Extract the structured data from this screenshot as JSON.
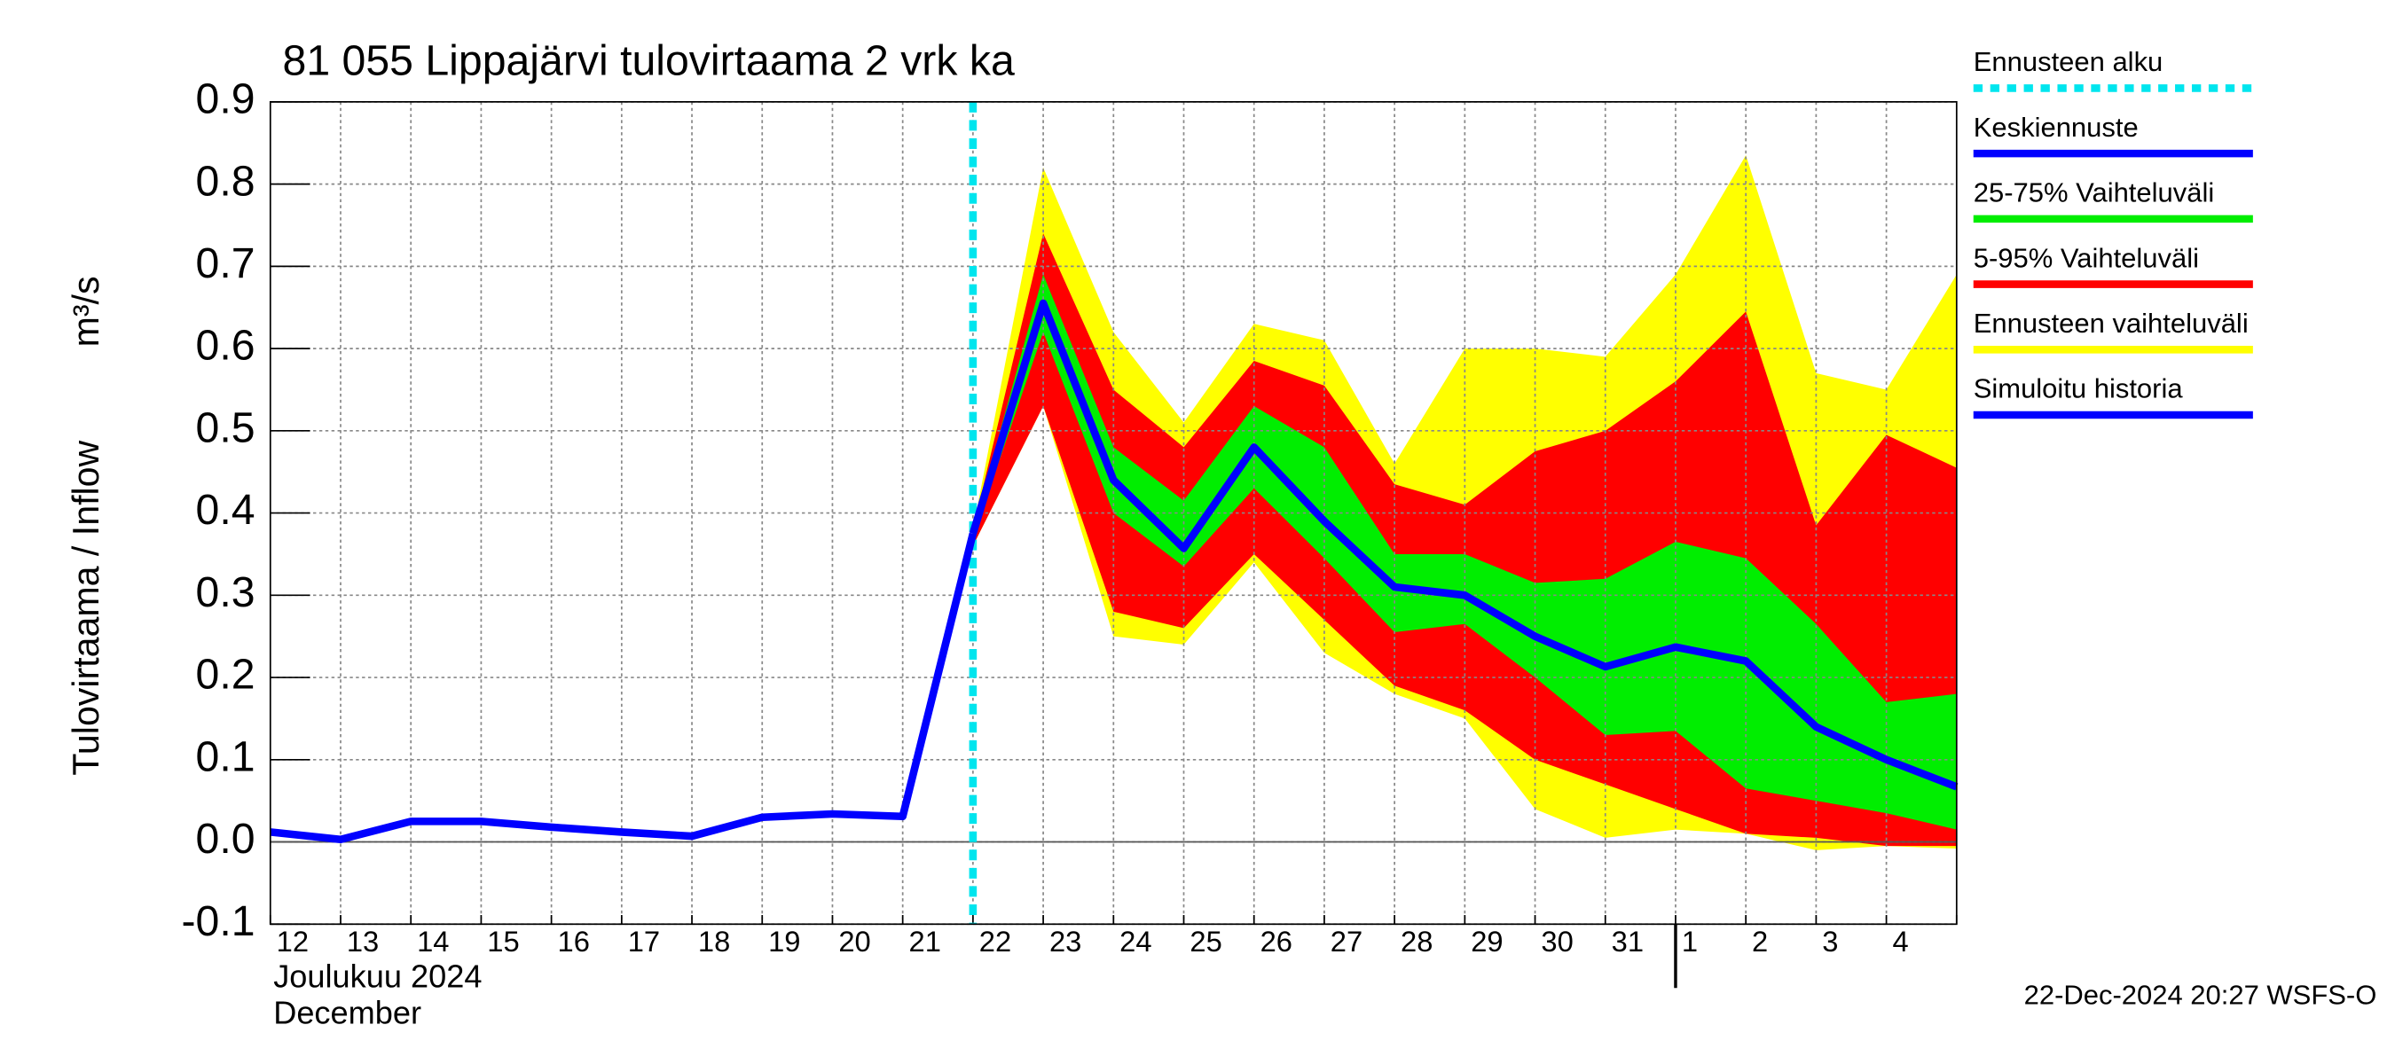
{
  "chart_data": {
    "type": "band-line",
    "title": "81 055 Lippajärvi tulovirtaama 2 vrk ka",
    "y_label": "Tulovirtaama / Inflow",
    "y_unit": "m³/s",
    "month_label_fi": "Joulukuu  2024",
    "month_label_en": "December",
    "footer": "22-Dec-2024 20:27 WSFS-O",
    "categories": [
      "12",
      "13",
      "14",
      "15",
      "16",
      "17",
      "18",
      "19",
      "20",
      "21",
      "22",
      "23",
      "24",
      "25",
      "26",
      "27",
      "28",
      "29",
      "30",
      "31",
      "1",
      "2",
      "3",
      "4",
      null
    ],
    "ylim": [
      -0.1,
      0.9
    ],
    "yticks": [
      -0.1,
      {
        "value": 0,
        "label": "0.0"
      },
      0.1,
      0.2,
      0.3,
      0.4,
      0.5,
      0.6,
      0.7,
      0.8,
      0.9
    ],
    "grid": true,
    "forecast_start": {
      "name": "Ennusteen alku",
      "color": "#00e5ee",
      "category": "22"
    },
    "bands": [
      {
        "name": "Ennusteen vaihteluväli",
        "color": "#ffff00",
        "low": [
          null,
          null,
          null,
          null,
          null,
          null,
          null,
          null,
          null,
          null,
          0.36,
          0.53,
          0.25,
          0.24,
          0.34,
          0.23,
          0.18,
          0.15,
          0.04,
          0.005,
          0.015,
          0.01,
          -0.01,
          -0.005,
          -0.008
        ],
        "high": [
          null,
          null,
          null,
          null,
          null,
          null,
          null,
          null,
          null,
          null,
          0.38,
          0.82,
          0.62,
          0.51,
          0.63,
          0.61,
          0.46,
          0.6,
          0.6,
          0.59,
          0.69,
          0.835,
          0.57,
          0.55,
          0.69
        ]
      },
      {
        "name": "5-95% Vaihteluväli",
        "color": "#ff0000",
        "low": [
          null,
          null,
          null,
          null,
          null,
          null,
          null,
          null,
          null,
          null,
          0.36,
          0.53,
          0.28,
          0.26,
          0.35,
          0.27,
          0.19,
          0.16,
          0.1,
          0.07,
          0.04,
          0.01,
          0.005,
          -0.005,
          -0.005
        ],
        "high": [
          null,
          null,
          null,
          null,
          null,
          null,
          null,
          null,
          null,
          null,
          0.38,
          0.74,
          0.55,
          0.48,
          0.585,
          0.555,
          0.435,
          0.41,
          0.475,
          0.5,
          0.56,
          0.645,
          0.385,
          0.495,
          0.455
        ]
      },
      {
        "name": "25-75% Vaihteluväli",
        "color": "#00ee00",
        "low": [
          null,
          null,
          null,
          null,
          null,
          null,
          null,
          null,
          null,
          null,
          0.37,
          0.62,
          0.4,
          0.335,
          0.43,
          0.345,
          0.255,
          0.265,
          0.2,
          0.13,
          0.135,
          0.065,
          0.05,
          0.035,
          0.015
        ],
        "high": [
          null,
          null,
          null,
          null,
          null,
          null,
          null,
          null,
          null,
          null,
          0.38,
          0.69,
          0.48,
          0.415,
          0.53,
          0.48,
          0.35,
          0.35,
          0.315,
          0.32,
          0.365,
          0.345,
          0.265,
          0.17,
          0.18
        ]
      }
    ],
    "series": [
      {
        "name": "Keskiennuste",
        "color": "#0000ff",
        "values": [
          null,
          null,
          null,
          null,
          null,
          null,
          null,
          null,
          null,
          null,
          0.375,
          0.655,
          0.44,
          0.357,
          0.48,
          0.39,
          0.31,
          0.3,
          0.25,
          0.213,
          0.237,
          0.22,
          0.14,
          0.1,
          0.067
        ]
      },
      {
        "name": "Simuloitu historia",
        "color": "#0000ff",
        "values": [
          0.012,
          0.003,
          0.025,
          0.025,
          0.018,
          0.012,
          0.007,
          0.03,
          0.034,
          0.031,
          0.375,
          null,
          null,
          null,
          null,
          null,
          null,
          null,
          null,
          null,
          null,
          null,
          null,
          null,
          null
        ]
      }
    ]
  }
}
